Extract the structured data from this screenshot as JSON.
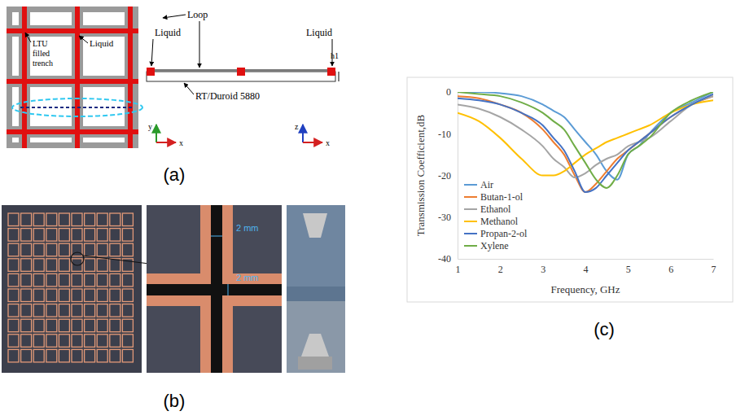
{
  "chart_data": {
    "type": "line",
    "x_label": "Frequency, GHz",
    "y_label": "Transmission Coefficient,dB",
    "x": [
      1,
      1.5,
      2,
      2.5,
      3,
      3.25,
      3.5,
      3.75,
      4,
      4.25,
      4.5,
      4.75,
      5,
      5.25,
      5.5,
      6,
      6.5,
      7
    ],
    "series": [
      {
        "name": "Air",
        "color": "#5b9bd5",
        "values": [
          0,
          0,
          -0.3,
          -1,
          -3,
          -4.5,
          -6,
          -9,
          -12,
          -15,
          -19,
          -21,
          -15,
          -13,
          -10,
          -5,
          -2.5,
          0
        ]
      },
      {
        "name": "Butan-1-ol",
        "color": "#ed7d31",
        "values": [
          -1,
          -1.5,
          -3,
          -5,
          -9,
          -12,
          -15,
          -20,
          -24,
          -22,
          -19,
          -16,
          -14,
          -12,
          -10,
          -6,
          -3,
          -1
        ]
      },
      {
        "name": "Ethanol",
        "color": "#a5a5a5",
        "values": [
          -3,
          -4,
          -6,
          -9,
          -13,
          -16,
          -18,
          -20.5,
          -19.5,
          -17.5,
          -16,
          -15,
          -13,
          -12,
          -11,
          -7,
          -3,
          -1
        ]
      },
      {
        "name": "Methanol",
        "color": "#ffc000",
        "values": [
          -5,
          -7,
          -11,
          -16,
          -20,
          -20,
          -19,
          -17,
          -15,
          -13.5,
          -12,
          -11,
          -10,
          -9,
          -8,
          -5,
          -3,
          -2
        ]
      },
      {
        "name": "Propan-2-ol",
        "color": "#4472c4",
        "values": [
          -1.5,
          -2,
          -3,
          -5,
          -8,
          -11,
          -14,
          -19,
          -24,
          -23,
          -20,
          -17,
          -14,
          -12,
          -10,
          -6,
          -3,
          -0.5
        ]
      },
      {
        "name": "Xylene",
        "color": "#70ad47",
        "values": [
          0,
          -0.5,
          -1,
          -2.5,
          -5,
          -7,
          -9,
          -13,
          -17,
          -21,
          -23,
          -20,
          -15,
          -13,
          -11,
          -5,
          -2,
          0
        ]
      }
    ],
    "xlim": [
      1,
      7
    ],
    "xticks": [
      1,
      2,
      3,
      4,
      5,
      6,
      7
    ],
    "ylim": [
      -40,
      0
    ],
    "yticks": [
      -40,
      -30,
      -20,
      -10,
      0
    ],
    "grid": false,
    "legend": "lower left"
  },
  "diagram": {
    "panel_labels": [
      "(a)",
      "(b)",
      "(c)"
    ],
    "top_view": {
      "trench_label": "LTU filled trench",
      "liquid_label": "Liquid",
      "axes": [
        "y",
        "x"
      ]
    },
    "cross_section": {
      "loop_label": "Loop",
      "liquid_labels": [
        "Liquid",
        "Liquid"
      ],
      "height_label": "h1",
      "substrate_label": "RT/Duroid 5880",
      "axes": [
        "z",
        "x"
      ]
    },
    "photo": {
      "dimension_labels": [
        "2 mm",
        "2 mm"
      ]
    }
  }
}
